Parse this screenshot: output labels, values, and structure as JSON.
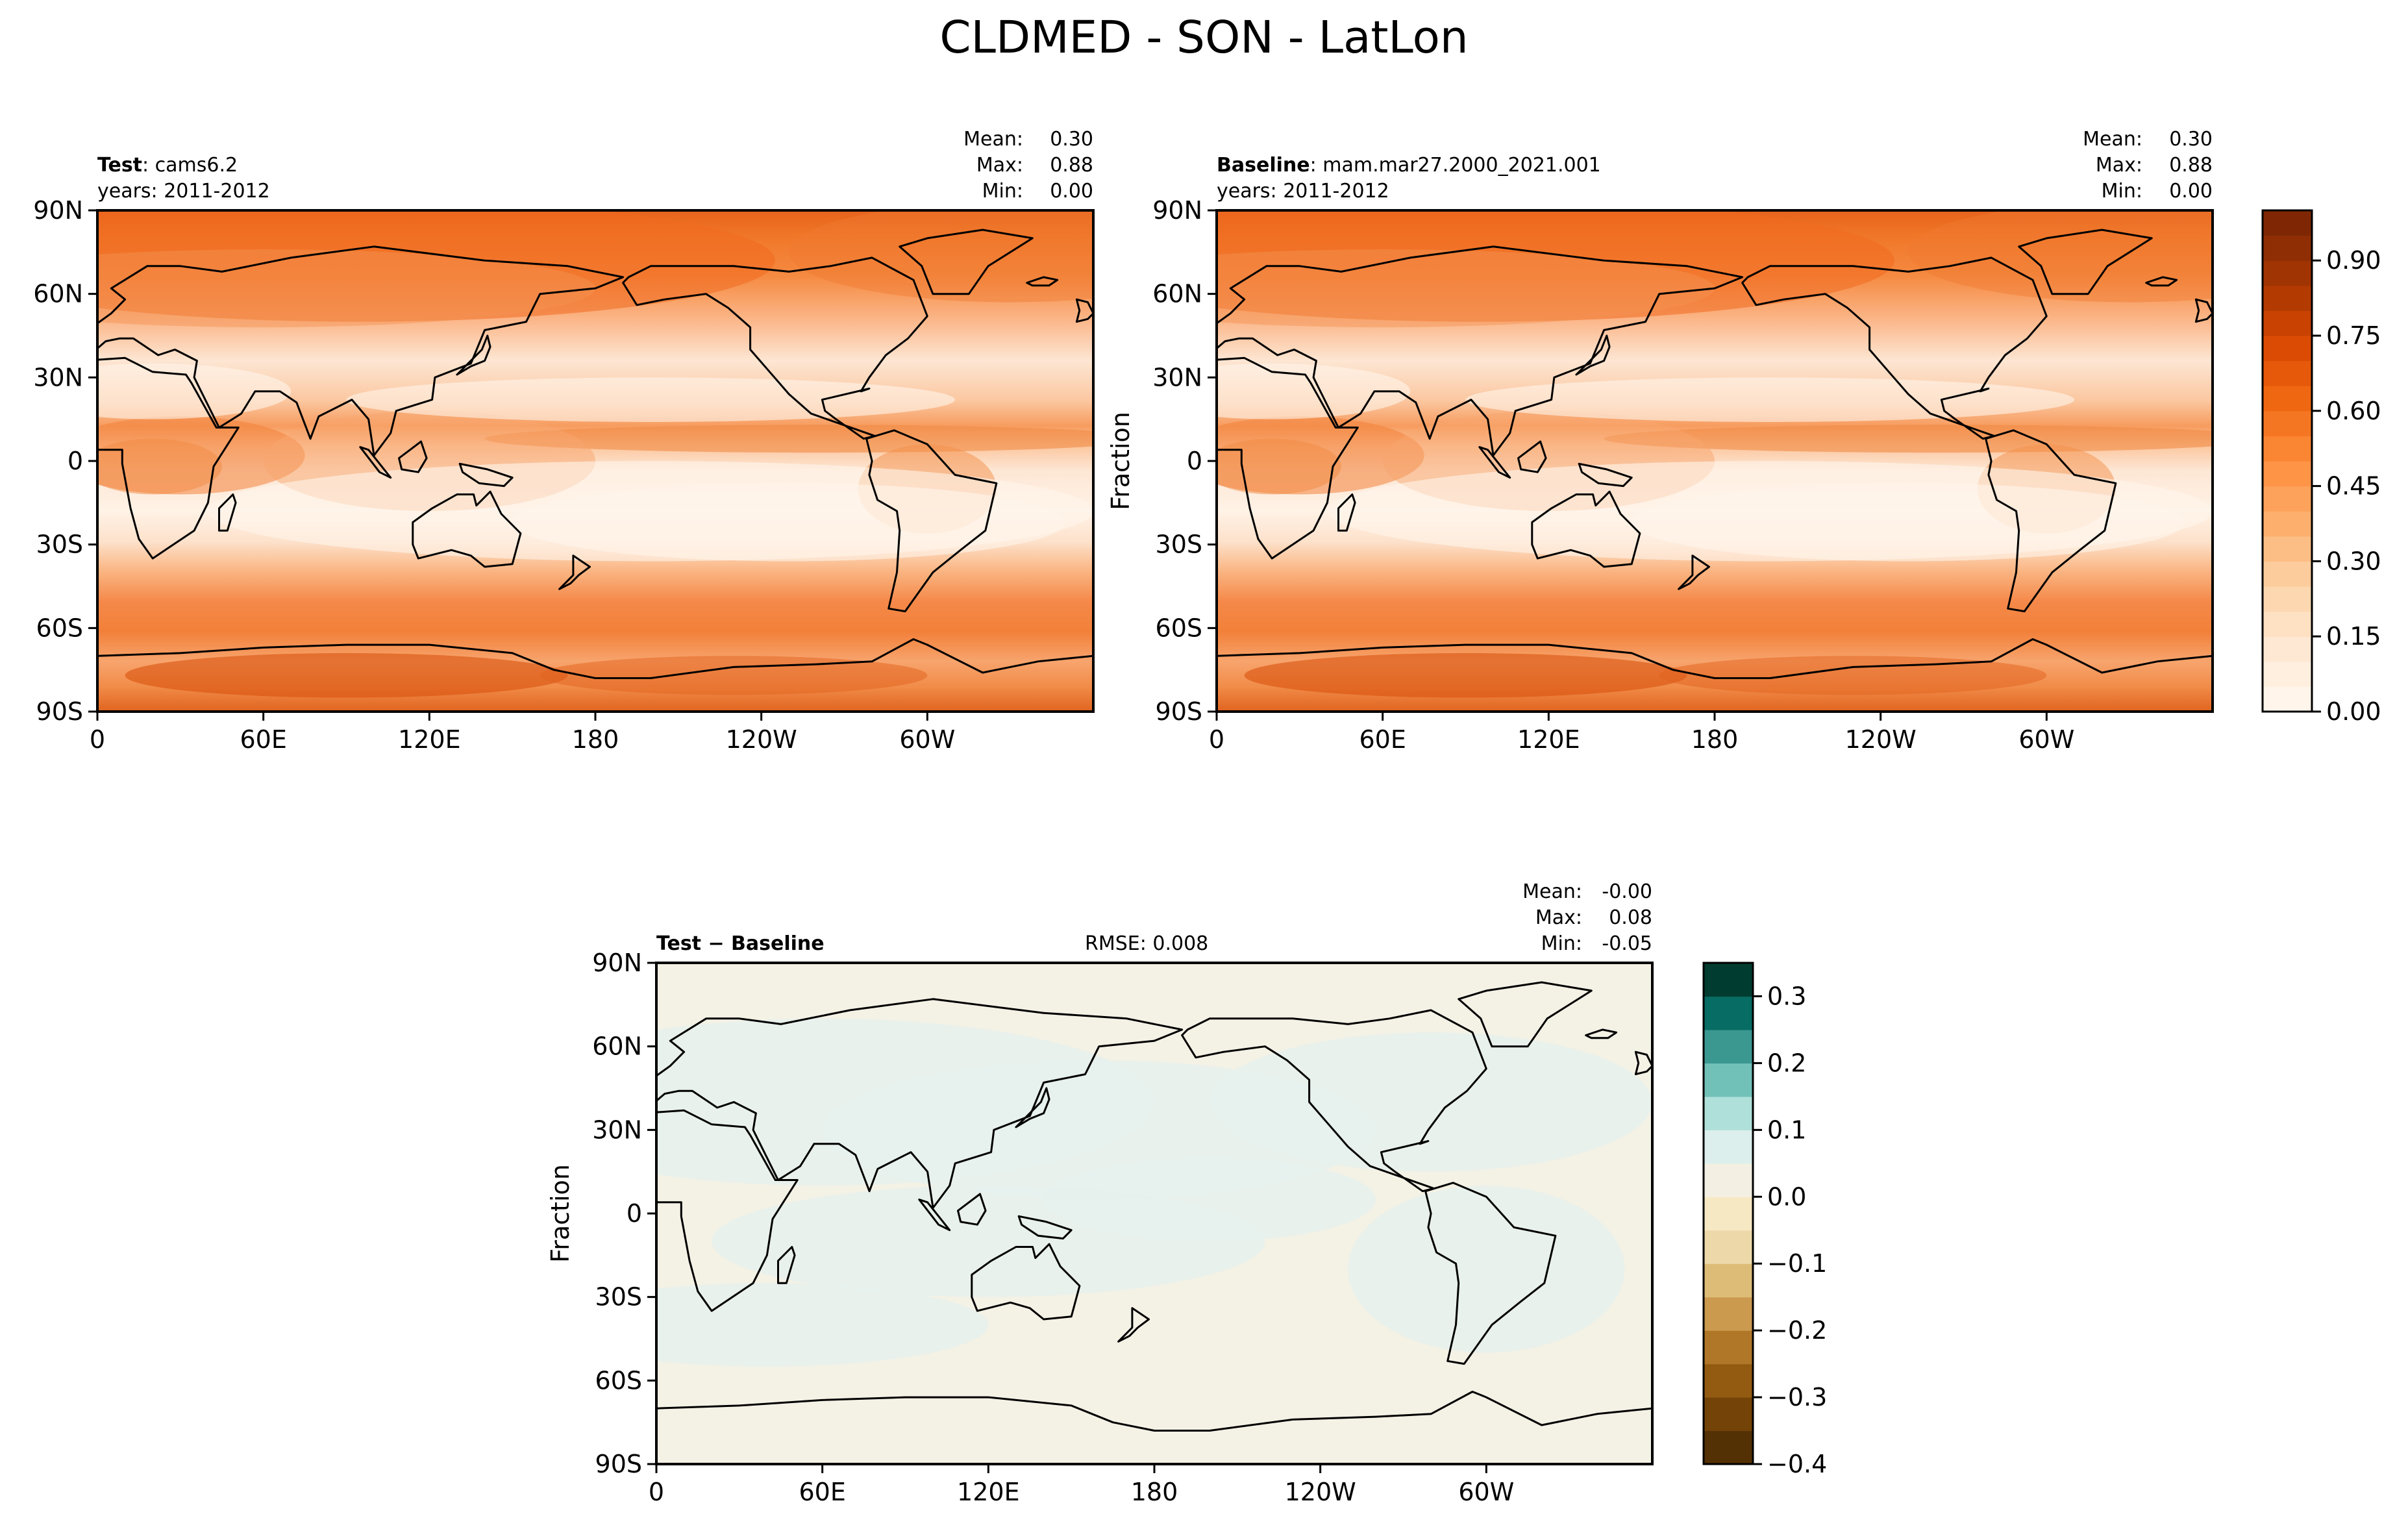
{
  "figure": {
    "title": "CLDMED - SON - LatLon"
  },
  "chart_data": [
    {
      "type": "heatmap",
      "id": "test",
      "label_bold": "Test",
      "label_rest": ": cams6.2",
      "years": "years: 2011-2012",
      "stats": [
        {
          "name": "Mean:",
          "value": "0.30"
        },
        {
          "name": "Max:",
          "value": "0.88"
        },
        {
          "name": "Min:",
          "value": "0.00"
        }
      ],
      "ylabel": "",
      "xticks": [
        "0",
        "60E",
        "120E",
        "180",
        "120W",
        "60W"
      ],
      "yticks": [
        "90N",
        "60N",
        "30N",
        "0",
        "30S",
        "60S",
        "90S"
      ],
      "xlim": [
        0,
        360
      ],
      "ylim": [
        -90,
        90
      ],
      "colormap": "Oranges",
      "value_range": [
        0,
        1.0
      ]
    },
    {
      "type": "heatmap",
      "id": "baseline",
      "label_bold": "Baseline",
      "label_rest": ": mam.mar27.2000_2021.001",
      "years": "years: 2011-2012",
      "stats": [
        {
          "name": "Mean:",
          "value": "0.30"
        },
        {
          "name": "Max:",
          "value": "0.88"
        },
        {
          "name": "Min:",
          "value": "0.00"
        }
      ],
      "ylabel": "Fraction",
      "xticks": [
        "0",
        "60E",
        "120E",
        "180",
        "120W",
        "60W"
      ],
      "yticks": [
        "90N",
        "60N",
        "30N",
        "0",
        "30S",
        "60S",
        "90S"
      ],
      "xlim": [
        0,
        360
      ],
      "ylim": [
        -90,
        90
      ],
      "colormap": "Oranges",
      "value_range": [
        0,
        1.0
      ],
      "colorbar": {
        "ticks": [
          "0.00",
          "0.15",
          "0.30",
          "0.45",
          "0.60",
          "0.75",
          "0.90"
        ],
        "tick_values": [
          0,
          0.15,
          0.3,
          0.45,
          0.6,
          0.75,
          0.9
        ],
        "range": [
          0,
          1.0
        ],
        "n_levels": 20
      }
    },
    {
      "type": "heatmap",
      "id": "diff",
      "label_bold": "Test − Baseline",
      "rmse": "RMSE: 0.008",
      "stats": [
        {
          "name": "Mean:",
          "value": "-0.00"
        },
        {
          "name": "Max:",
          "value": "0.08"
        },
        {
          "name": "Min:",
          "value": "-0.05"
        }
      ],
      "ylabel": "Fraction",
      "xticks": [
        "0",
        "60E",
        "120E",
        "180",
        "120W",
        "60W"
      ],
      "yticks": [
        "90N",
        "60N",
        "30N",
        "0",
        "30S",
        "60S",
        "90S"
      ],
      "xlim": [
        0,
        360
      ],
      "ylim": [
        -90,
        90
      ],
      "colormap": "BrBG",
      "colorbar": {
        "ticks": [
          "0.3",
          "0.2",
          "0.1",
          "0.0",
          "−0.1",
          "−0.2",
          "−0.3",
          "−0.4"
        ],
        "tick_values": [
          0.3,
          0.2,
          0.1,
          0.0,
          -0.1,
          -0.2,
          -0.3,
          -0.4
        ],
        "range": [
          -0.4,
          0.35
        ],
        "n_levels": 15
      }
    }
  ],
  "colors": {
    "oranges": [
      "#fff5eb",
      "#fee6ce",
      "#fdd0a2",
      "#fdae6b",
      "#fd8d3c",
      "#f16913",
      "#d94801",
      "#a63603",
      "#7f2704"
    ],
    "brbg_levels": [
      "#543005",
      "#6f4107",
      "#8c510a",
      "#a66f25",
      "#bf812d",
      "#d4ad68",
      "#dfc27d",
      "#efdcb0",
      "#f6e8c3",
      "#f5f0e1",
      "#e4f1ef",
      "#c7eae5",
      "#8fd3c8",
      "#5ab4ac",
      "#2e8d86",
      "#01665e",
      "#003c30"
    ],
    "diff_field": "#f4f1e5",
    "diff_cool": "#e6f1ee"
  }
}
